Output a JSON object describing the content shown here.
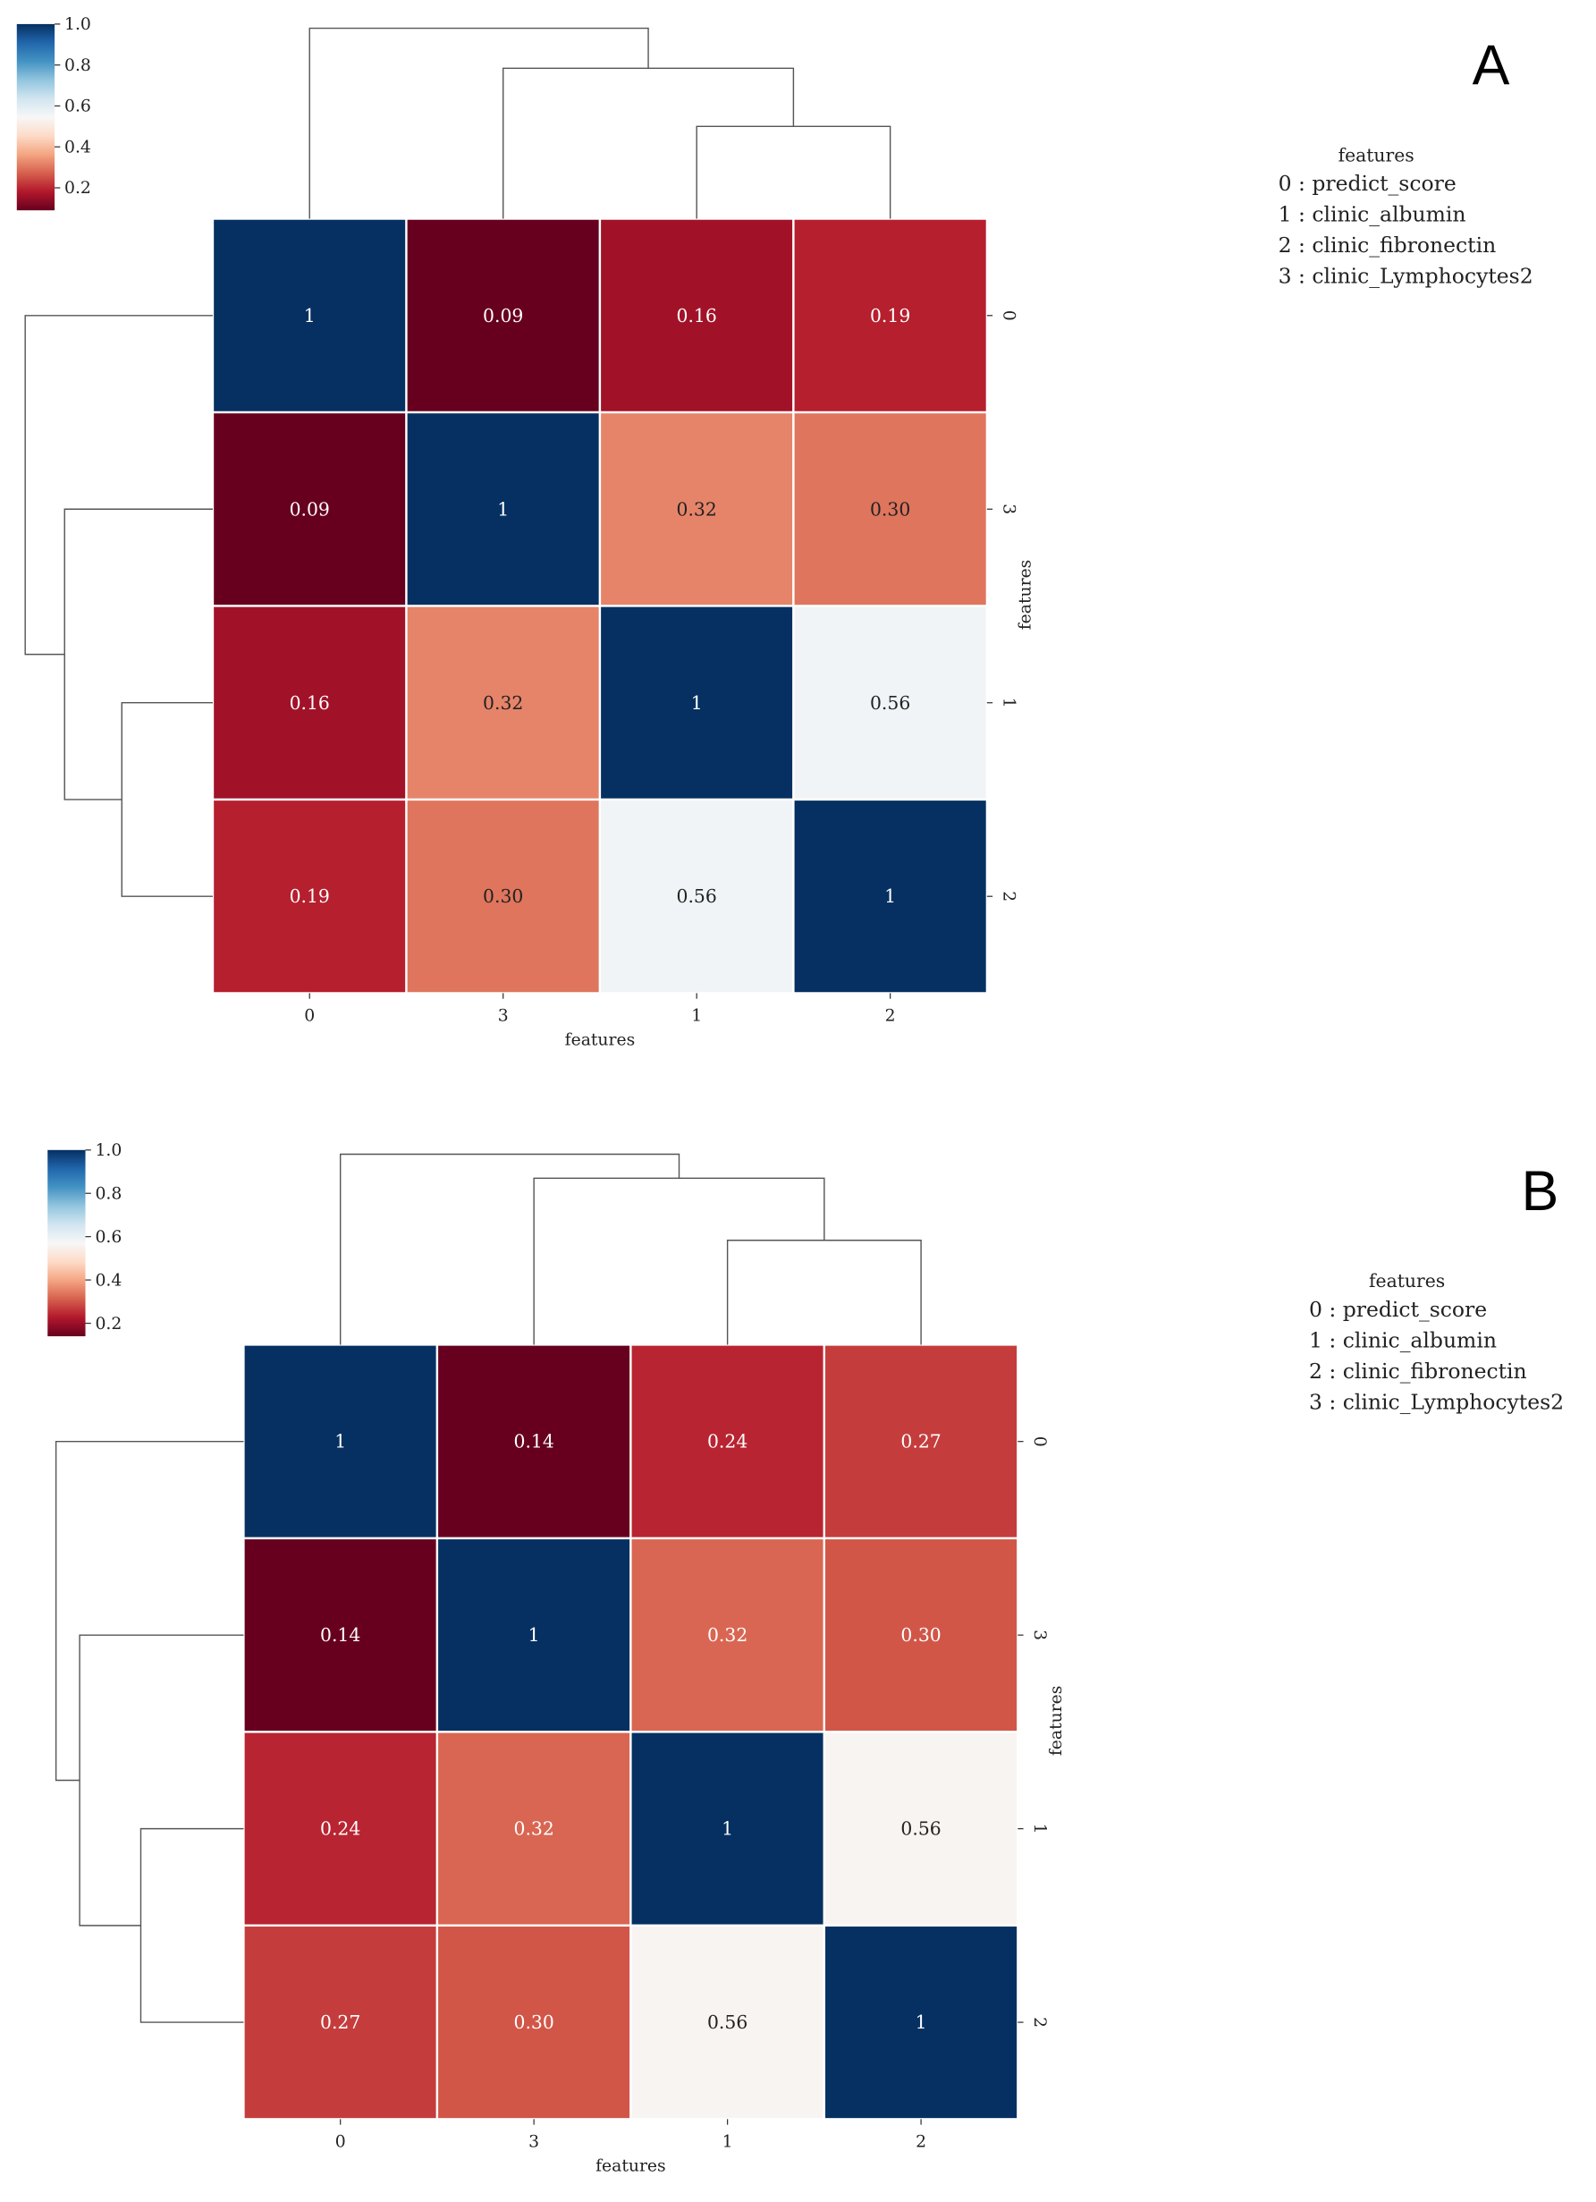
{
  "colormap": [
    "#67001f",
    "#b2182b",
    "#d6604d",
    "#f4a582",
    "#fddbc7",
    "#f7f7f7",
    "#d1e5f0",
    "#92c5de",
    "#4393c3",
    "#2166ac",
    "#053061"
  ],
  "chart_data": [
    {
      "type": "heatmap",
      "panel_label": "A",
      "title": "",
      "order": [
        "0",
        "3",
        "1",
        "2"
      ],
      "xlabel": "features",
      "ylabel": "features",
      "vmin": 0.09,
      "vmax": 1.0,
      "colorbar_ticks": [
        "0.2",
        "0.4",
        "0.6",
        "0.8",
        "1.0"
      ],
      "values": [
        [
          1,
          0.09,
          0.16,
          0.19
        ],
        [
          0.09,
          1,
          0.32,
          0.3
        ],
        [
          0.16,
          0.32,
          1,
          0.56
        ],
        [
          0.19,
          0.3,
          0.56,
          1
        ]
      ],
      "annotations": [
        [
          "1",
          "0.09",
          "0.16",
          "0.19"
        ],
        [
          "0.09",
          "1",
          "0.32",
          "0.30"
        ],
        [
          "0.16",
          "0.32",
          "1",
          "0.56"
        ],
        [
          "0.19",
          "0.30",
          "0.56",
          "1"
        ]
      ],
      "dendrogram_relative_heights": {
        "merge_1_2": 0.485,
        "merge_3_12": 0.79,
        "root": 1.0
      },
      "legend_title": "features",
      "legend": [
        "0 : predict_score",
        "1 : clinic_albumin",
        "2 : clinic_fibronectin",
        "3 : clinic_Lymphocytes2"
      ]
    },
    {
      "type": "heatmap",
      "panel_label": "B",
      "title": "",
      "order": [
        "0",
        "3",
        "1",
        "2"
      ],
      "xlabel": "features",
      "ylabel": "features",
      "vmin": 0.14,
      "vmax": 1.0,
      "colorbar_ticks": [
        "0.2",
        "0.4",
        "0.6",
        "0.8",
        "1.0"
      ],
      "values": [
        [
          1,
          0.14,
          0.24,
          0.27
        ],
        [
          0.14,
          1,
          0.32,
          0.3
        ],
        [
          0.24,
          0.32,
          1,
          0.56
        ],
        [
          0.27,
          0.3,
          0.56,
          1
        ]
      ],
      "annotations": [
        [
          "1",
          "0.14",
          "0.24",
          "0.27"
        ],
        [
          "0.14",
          "1",
          "0.32",
          "0.30"
        ],
        [
          "0.24",
          "0.32",
          "1",
          "0.56"
        ],
        [
          "0.27",
          "0.30",
          "0.56",
          "1"
        ]
      ],
      "dendrogram_relative_heights": {
        "merge_1_2": 0.548,
        "merge_3_12": 0.874,
        "root": 1.0
      },
      "legend_title": "features",
      "legend": [
        "0 : predict_score",
        "1 : clinic_albumin",
        "2 : clinic_fibronectin",
        "3 : clinic_Lymphocytes2"
      ]
    }
  ]
}
